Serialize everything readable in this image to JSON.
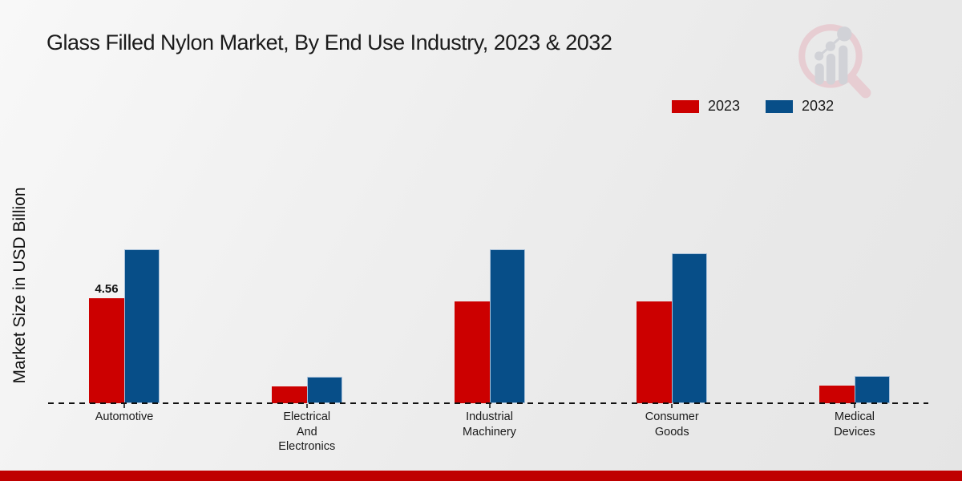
{
  "title": {
    "text": "Glass Filled Nylon Market, By End Use Industry, 2023 & 2032"
  },
  "y_axis": {
    "label": "Market Size in USD Billion"
  },
  "legend": {
    "items": [
      {
        "label": "2023",
        "color": "#cc0000"
      },
      {
        "label": "2032",
        "color": "#074e88"
      }
    ]
  },
  "chart_data": {
    "type": "bar",
    "categories": [
      "Automotive",
      "Electrical And Electronics",
      "Industrial Machinery",
      "Consumer Goods",
      "Medical Devices"
    ],
    "category_label_lines": [
      [
        "Automotive"
      ],
      [
        "Electrical",
        "And",
        "Electronics"
      ],
      [
        "Industrial",
        "Machinery"
      ],
      [
        "Consumer",
        "Goods"
      ],
      [
        "Medical",
        "Devices"
      ]
    ],
    "series": [
      {
        "name": "2023",
        "color": "#cc0000",
        "values": [
          4.56,
          0.73,
          4.42,
          4.42,
          0.77
        ],
        "value_labels": [
          "4.56",
          "",
          "",
          "",
          ""
        ]
      },
      {
        "name": "2032",
        "color": "#074e88",
        "values": [
          6.65,
          1.15,
          6.68,
          6.51,
          1.18
        ],
        "value_labels": [
          "",
          "",
          "",
          "",
          ""
        ]
      }
    ],
    "title": "Glass Filled Nylon Market, By End Use Industry, 2023 & 2032",
    "xlabel": "",
    "ylabel": "Market Size in USD Billion",
    "ylim": [
      0,
      7
    ],
    "grid": false,
    "legend_position": "top-right",
    "baseline_style": "dashed"
  },
  "logo": {
    "name": "market-research-magnifier-logo"
  },
  "footer": {
    "bar_color": "#bf0000"
  }
}
